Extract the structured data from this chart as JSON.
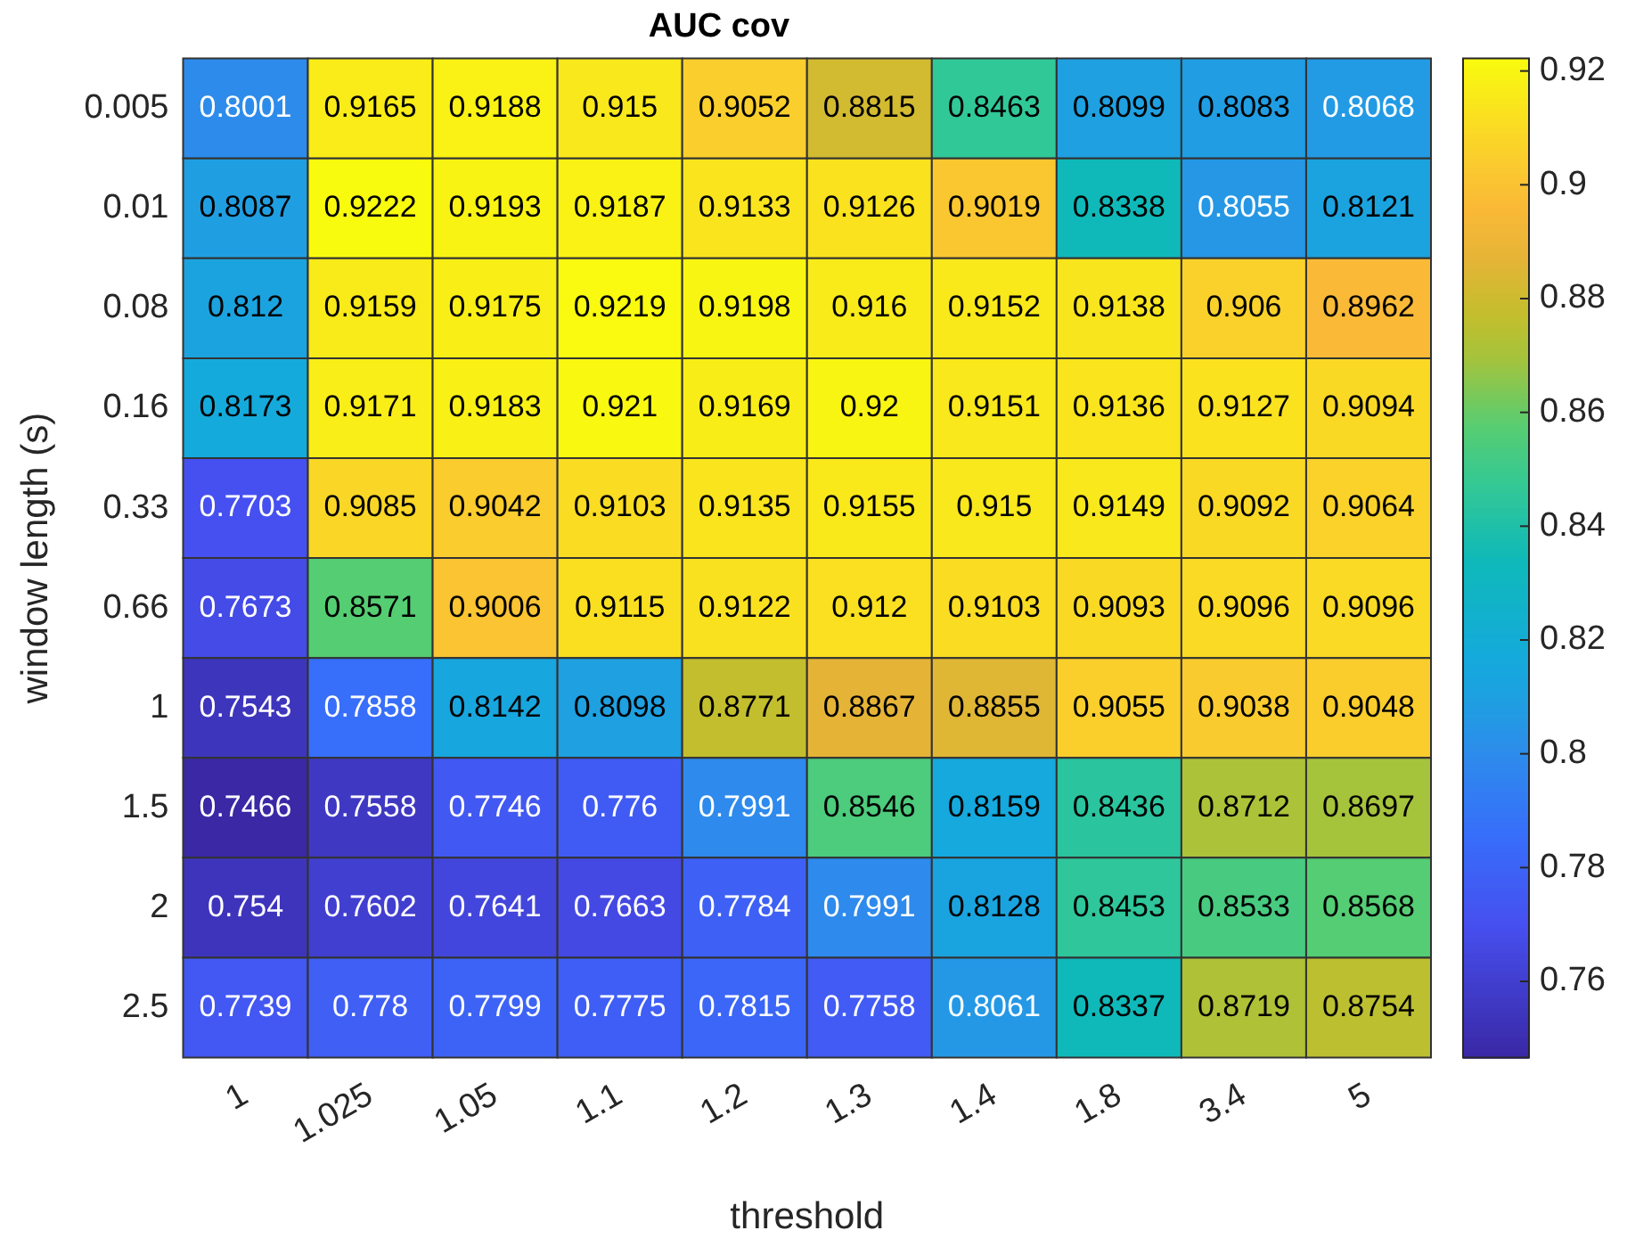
{
  "chart_data": {
    "type": "heatmap",
    "title": "AUC cov",
    "xlabel": "threshold",
    "ylabel": "window length (s)",
    "categories": [
      "1",
      "1.025",
      "1.05",
      "1.1",
      "1.2",
      "1.3",
      "1.4",
      "1.8",
      "3.4",
      "5"
    ],
    "y_categories": [
      "0.005",
      "0.01",
      "0.08",
      "0.16",
      "0.33",
      "0.66",
      "1",
      "1.5",
      "2",
      "2.5"
    ],
    "cells": [
      [
        0.8001,
        0.9165,
        0.9188,
        0.915,
        0.9052,
        0.8815,
        0.8463,
        0.8099,
        0.8083,
        0.8068
      ],
      [
        0.8087,
        0.9222,
        0.9193,
        0.9187,
        0.9133,
        0.9126,
        0.9019,
        0.8338,
        0.8055,
        0.8121
      ],
      [
        0.812,
        0.9159,
        0.9175,
        0.9219,
        0.9198,
        0.916,
        0.9152,
        0.9138,
        0.906,
        0.8962
      ],
      [
        0.8173,
        0.9171,
        0.9183,
        0.921,
        0.9169,
        0.92,
        0.9151,
        0.9136,
        0.9127,
        0.9094
      ],
      [
        0.7703,
        0.9085,
        0.9042,
        0.9103,
        0.9135,
        0.9155,
        0.915,
        0.9149,
        0.9092,
        0.9064
      ],
      [
        0.7673,
        0.8571,
        0.9006,
        0.9115,
        0.9122,
        0.912,
        0.9103,
        0.9093,
        0.9096,
        0.9096
      ],
      [
        0.7543,
        0.7858,
        0.8142,
        0.8098,
        0.8771,
        0.8867,
        0.8855,
        0.9055,
        0.9038,
        0.9048
      ],
      [
        0.7466,
        0.7558,
        0.7746,
        0.776,
        0.7991,
        0.8546,
        0.8159,
        0.8436,
        0.8712,
        0.8697
      ],
      [
        0.754,
        0.7602,
        0.7641,
        0.7663,
        0.7784,
        0.7991,
        0.8128,
        0.8453,
        0.8533,
        0.8568
      ],
      [
        0.7739,
        0.778,
        0.7799,
        0.7775,
        0.7815,
        0.7758,
        0.8061,
        0.8337,
        0.8719,
        0.8754
      ]
    ],
    "clim": [
      0.7466,
      0.9222
    ],
    "cticks": [
      0.76,
      0.78,
      0.8,
      0.82,
      0.84,
      0.86,
      0.88,
      0.9,
      0.92
    ],
    "data_labels": true
  }
}
